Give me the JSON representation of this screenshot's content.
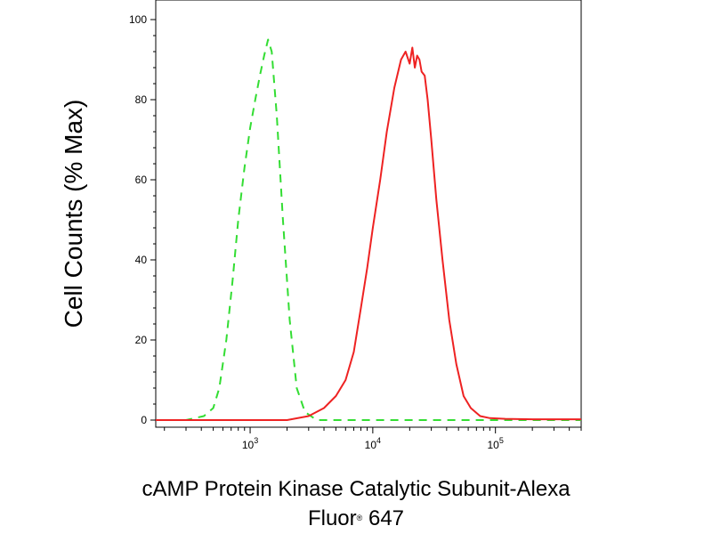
{
  "chart_data": {
    "type": "line",
    "ylabel": "Cell Counts (% Max)",
    "xlabel_line1": "cAMP Protein Kinase Catalytic Subunit-Alexa",
    "xlabel_line2_main": "Fluor",
    "xlabel_line2_sup": "®",
    "xlabel_line2_tail": " 647",
    "x_scale": "log",
    "xlim": [
      170,
      500000
    ],
    "ylim": [
      0,
      100
    ],
    "y_ticks": [
      {
        "value": 0,
        "label": "0"
      },
      {
        "value": 20,
        "label": "20"
      },
      {
        "value": 40,
        "label": "40"
      },
      {
        "value": 60,
        "label": "60"
      },
      {
        "value": 80,
        "label": "80"
      },
      {
        "value": 100,
        "label": "100"
      }
    ],
    "x_major_ticks": [
      {
        "value": 1000,
        "base": "10",
        "exp": "3"
      },
      {
        "value": 10000,
        "base": "10",
        "exp": "4"
      },
      {
        "value": 100000,
        "base": "10",
        "exp": "5"
      }
    ],
    "grid": false,
    "series": [
      {
        "color": "#33dd33",
        "style": "dashed",
        "x": [
          170,
          300,
          420,
          500,
          560,
          640,
          720,
          800,
          900,
          1000,
          1100,
          1200,
          1300,
          1400,
          1500,
          1650,
          1850,
          2100,
          2400,
          2800,
          3500,
          5000,
          10000,
          50000,
          500000
        ],
        "y": [
          0,
          0,
          1,
          3,
          8,
          20,
          35,
          50,
          63,
          73,
          80,
          86,
          91,
          95,
          92,
          76,
          50,
          25,
          8,
          2,
          0,
          0,
          0,
          0,
          0
        ]
      },
      {
        "color": "#ee2222",
        "style": "solid",
        "x": [
          170,
          2000,
          3000,
          4000,
          5000,
          6000,
          7000,
          8000,
          9000,
          10000,
          11500,
          13000,
          15000,
          17000,
          18500,
          20000,
          21000,
          22000,
          23000,
          24000,
          25000,
          26500,
          28000,
          30000,
          33000,
          37000,
          42000,
          48000,
          55000,
          63000,
          75000,
          90000,
          120000,
          200000,
          500000
        ],
        "y": [
          0,
          0,
          1,
          3,
          6,
          10,
          17,
          28,
          38,
          48,
          60,
          72,
          83,
          90,
          92,
          89,
          93,
          88,
          91,
          90,
          87,
          86,
          80,
          70,
          55,
          40,
          25,
          14,
          6,
          3,
          1,
          0.5,
          0.3,
          0.2,
          0.2
        ]
      }
    ]
  }
}
